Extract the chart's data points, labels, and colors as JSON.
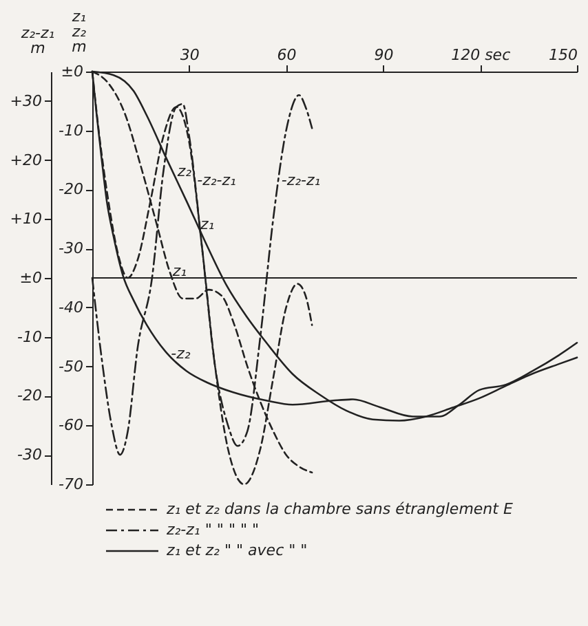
{
  "chart_data": {
    "type": "line",
    "xlim": [
      0,
      150
    ],
    "xticks": [
      30,
      60,
      90,
      {
        "value": 120,
        "label": "120 sec"
      },
      150
    ],
    "ylim": [
      -70,
      0
    ],
    "yticks": [
      {
        "value": 0,
        "label": "±0"
      },
      -10,
      -20,
      -30,
      -40,
      -50,
      -60,
      -70
    ],
    "y2lim": [
      -35,
      35
    ],
    "y2ticks": [
      {
        "value": 30,
        "label": "+30"
      },
      {
        "value": 20,
        "label": "+20"
      },
      {
        "value": 10,
        "label": "+10"
      },
      {
        "value": 0,
        "label": "±0"
      },
      -10,
      -20,
      -30
    ],
    "ylabel": "z₁\nz₂\nm",
    "y2label": "z₂-z₁\nm",
    "legend": "bottom",
    "grid": false,
    "series": [
      {
        "name": "z₁ et z₂  dans la chambre sans étranglement E",
        "color": "#222222",
        "line_style": "dashed",
        "x": [
          0,
          5,
          10,
          15,
          20,
          24,
          28,
          32,
          36,
          40,
          44,
          48,
          52,
          56,
          60,
          64,
          68
        ],
        "values": [
          0,
          -2,
          -7,
          -16,
          -26,
          -34,
          -38.5,
          -38.5,
          -37,
          -38,
          -43,
          -50,
          -56,
          -61,
          -65,
          -67,
          -68
        ]
      },
      {
        "color": "#222222",
        "line_style": "dashed",
        "x": [
          0,
          2,
          5,
          8,
          11,
          14,
          18,
          22,
          26,
          30,
          34,
          38,
          42,
          47,
          52,
          56,
          60,
          63.5,
          66,
          68
        ],
        "values": [
          0,
          -10,
          -22,
          -31,
          -35,
          -32,
          -22,
          -11,
          -6,
          -12,
          -30,
          -50,
          -64,
          -70,
          -64,
          -52,
          -40,
          -36,
          -38,
          -43
        ]
      },
      {
        "name": "z₂-z₁  \"  \"  \"  \"  \"",
        "color": "#222222",
        "line_style": "dashdot",
        "axis": "y2",
        "x": [
          0,
          3,
          6,
          8.6,
          11,
          14,
          18.5,
          22,
          26,
          28,
          30,
          34,
          38,
          42,
          45,
          48,
          52,
          56,
          60,
          64,
          66,
          68
        ],
        "values": [
          0,
          -14,
          -25,
          -30,
          -26,
          -12,
          0,
          18,
          29,
          29.5,
          24,
          5,
          -15,
          -25,
          -28.5,
          -26,
          -10,
          10,
          25,
          31,
          29,
          25.4
        ]
      },
      {
        "name": "z₁ et z₂  \"  \"  avec  \"  \"",
        "color": "#222222",
        "line_style": "solid",
        "x": [
          0,
          6.6,
          12.8,
          16.9,
          23,
          29.2,
          35.4,
          41.6,
          47.7,
          53.9,
          62,
          70.4,
          78.6,
          86.8,
          95,
          103.3,
          111.5,
          119.8,
          128,
          136,
          144.4,
          150
        ],
        "values": [
          0,
          -0.6,
          -3.3,
          -7.5,
          -14.8,
          -22,
          -29.4,
          -36.3,
          -41.5,
          -46,
          -51.3,
          -54.8,
          -57.5,
          -59,
          -59.2,
          -58.5,
          -57,
          -55.4,
          -53.3,
          -51.3,
          -49.6,
          -48.5
        ]
      },
      {
        "color": "#222222",
        "line_style": "solid",
        "x": [
          0,
          1.2,
          2.9,
          4.5,
          6.6,
          9.5,
          12.8,
          16.9,
          23,
          29.2,
          35.4,
          43.6,
          53.9,
          62,
          74.5,
          80.7,
          88.9,
          99.2,
          107.4,
          113.6,
          119.8,
          128,
          136.2,
          144.4,
          150
        ],
        "values": [
          0,
          -6.5,
          -14.8,
          -22,
          -28,
          -34.6,
          -38.8,
          -43,
          -47.7,
          -50.8,
          -52.7,
          -54.4,
          -55.8,
          -56.5,
          -55.8,
          -55.6,
          -56.9,
          -58.5,
          -58.5,
          -56.5,
          -54,
          -53.1,
          -50.8,
          -48.1,
          -46
        ]
      }
    ],
    "ref_lines": [
      {
        "axis": "y2",
        "value": 0
      }
    ],
    "annotations": [
      {
        "text": "z₂",
        "x": 25.5,
        "y": -17
      },
      {
        "text": "-z₂-z₁",
        "x": 31.6,
        "y": -18.5
      },
      {
        "text": "z₁",
        "x": 32.6,
        "y": -26
      },
      {
        "text": "-z₂-z₁",
        "x": 57.7,
        "y": -18.5
      },
      {
        "text": "z₁",
        "x": 24,
        "y": -34
      },
      {
        "text": "-z₂",
        "x": 23.5,
        "y": -48
      }
    ]
  }
}
